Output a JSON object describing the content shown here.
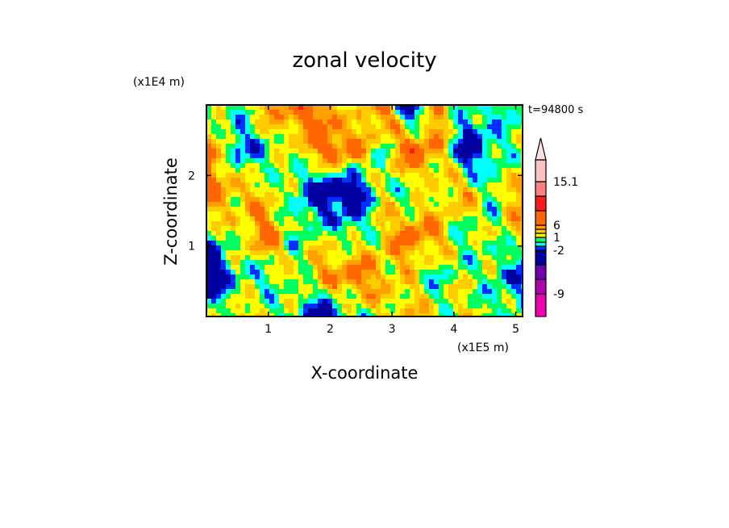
{
  "chart_data": {
    "type": "heatmap",
    "title": "zonal velocity",
    "xlabel": "X-coordinate",
    "ylabel": "Z-coordinate",
    "x_multiplier": "(x1E5 m)",
    "y_multiplier": "(x1E4 m)",
    "annotation": "t=94800 s",
    "xlim": [
      0,
      5.11
    ],
    "ylim": [
      0,
      3.0
    ],
    "xticks": [
      "1",
      "2",
      "3",
      "4",
      "5"
    ],
    "xtick_values": [
      1,
      2,
      3,
      4,
      5
    ],
    "yticks": [
      "1",
      "2"
    ],
    "ytick_values": [
      1,
      2
    ],
    "colorbar": {
      "levels": [
        -12,
        -9,
        -6,
        -3,
        -2,
        -1,
        0,
        1,
        2,
        3,
        6,
        9,
        12,
        15.1
      ],
      "colors": [
        "#ee00b0",
        "#b000b0",
        "#7000b0",
        "#0000a0",
        "#0030ff",
        "#00ffff",
        "#00ff60",
        "#ffff00",
        "#ffcc00",
        "#ffa000",
        "#ff6600",
        "#ff1a1a",
        "#ff8080",
        "#ffc0c0",
        "#ffe0e0"
      ],
      "labels": [
        "15.1",
        "6",
        "1",
        "-2",
        "-9"
      ],
      "label_values": [
        15.1,
        6,
        1,
        -2,
        -9
      ]
    },
    "field_coarse_grid_note": "approximate values, rows top to bottom",
    "field": [
      [
        -1,
        -0.5,
        2,
        4,
        4,
        -1,
        5,
        -5,
        3,
        -1,
        -1,
        -1
      ],
      [
        4,
        -3,
        -1,
        0.5,
        4,
        4,
        -1,
        5,
        2,
        -5,
        -1,
        0.5
      ],
      [
        4,
        2,
        1,
        -1,
        -5,
        -5,
        0.5,
        -1,
        1,
        2,
        -1,
        4
      ],
      [
        -1,
        0.5,
        4,
        -1,
        0.5,
        -1,
        1,
        4,
        2,
        -1,
        0.5,
        1
      ],
      [
        -5,
        -1,
        -1,
        0.5,
        2,
        4,
        2,
        0.5,
        -1,
        0.5,
        -1,
        -3
      ],
      [
        -1,
        2,
        0.5,
        -1,
        -5,
        -1,
        0.5,
        2,
        0.5,
        1,
        -1,
        0.5
      ]
    ]
  }
}
